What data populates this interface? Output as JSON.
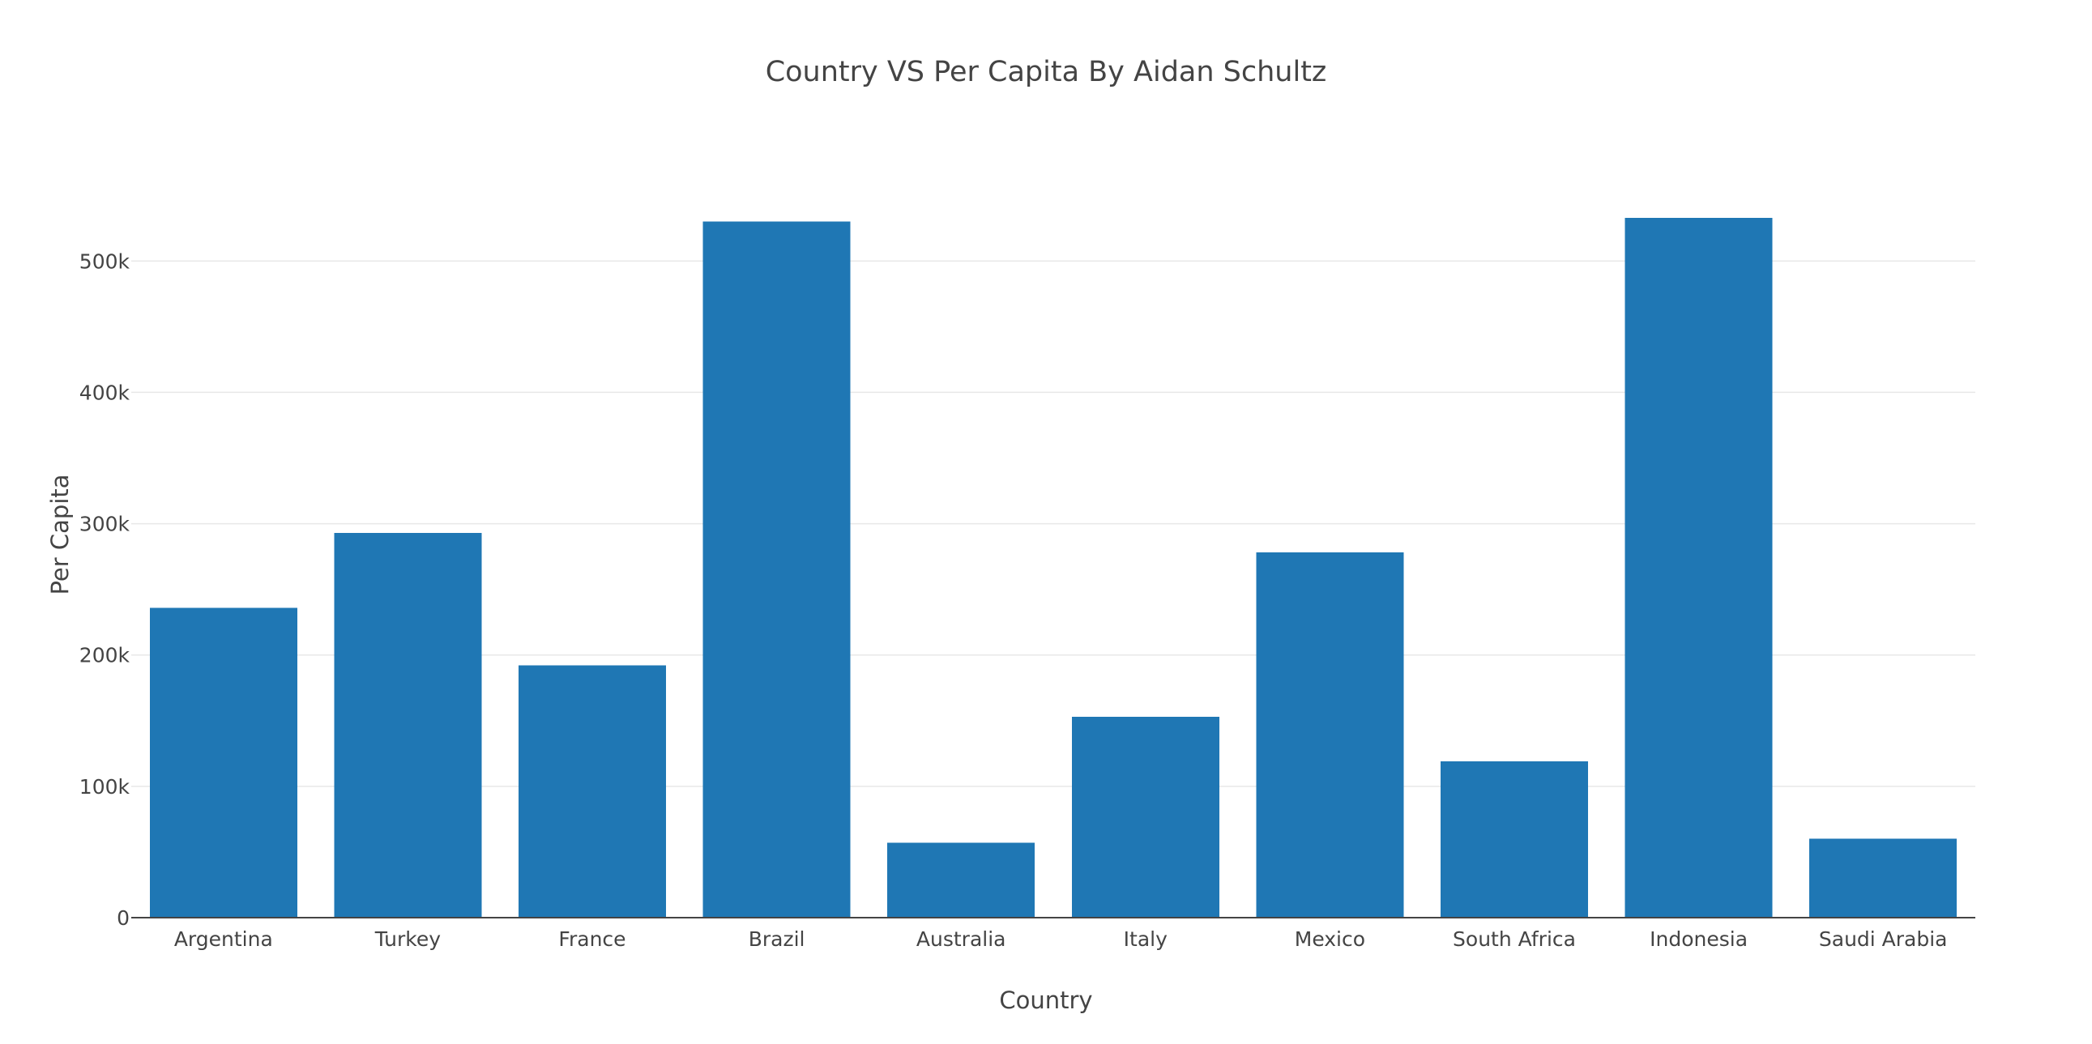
{
  "chart_data": {
    "type": "bar",
    "title": "Country VS Per Capita By Aidan Schultz",
    "xlabel": "Country",
    "ylabel": "Per Capita",
    "categories": [
      "Argentina",
      "Turkey",
      "France",
      "Brazil",
      "Australia",
      "Italy",
      "Mexico",
      "South Africa",
      "Indonesia",
      "Saudi Arabia"
    ],
    "values": [
      236000,
      293000,
      192000,
      530000,
      57000,
      153000,
      278000,
      119000,
      533000,
      60000
    ],
    "ylim": [
      0,
      560000
    ],
    "yticks": [
      0,
      100000,
      200000,
      300000,
      400000,
      500000
    ],
    "ytick_labels": [
      "0",
      "100k",
      "200k",
      "300k",
      "400k",
      "500k"
    ],
    "grid": true,
    "legend": "none",
    "colors": {
      "bar": "#1f77b4",
      "grid": "#e8e8e8",
      "axis": "#444444",
      "text": "#444444"
    }
  }
}
